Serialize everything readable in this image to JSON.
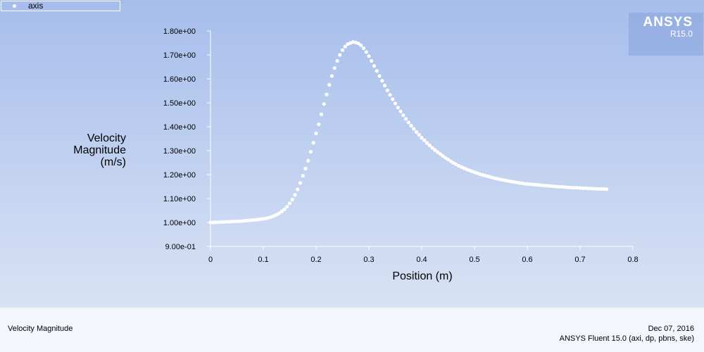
{
  "legend": {
    "series_name": "axis"
  },
  "logo": {
    "brand": "ANSYS",
    "version": "R15.0"
  },
  "footer": {
    "left": "Velocity Magnitude",
    "date": "Dec 07, 2016",
    "software": "ANSYS Fluent 15.0 (axi, dp, pbns, ske)"
  },
  "colors": {
    "background_top": "#a6bdec",
    "background_bottom": "#dfe7f7",
    "marker": "#ffffff",
    "axis": "#ffffff"
  },
  "chart_data": {
    "type": "scatter",
    "title": "",
    "ylabel_lines": [
      "Velocity",
      "Magnitude",
      "(m/s)"
    ],
    "xlabel": "Position (m)",
    "xlim": [
      0,
      0.8
    ],
    "ylim": [
      0.9,
      1.8
    ],
    "xticks": [
      0,
      0.1,
      0.2,
      0.3,
      0.4,
      0.5,
      0.6,
      0.7,
      0.8
    ],
    "xtick_labels": [
      "0",
      "0.1",
      "0.2",
      "0.3",
      "0.4",
      "0.5",
      "0.6",
      "0.7",
      "0.8"
    ],
    "yticks": [
      0.9,
      1.0,
      1.1,
      1.2,
      1.3,
      1.4,
      1.5,
      1.6,
      1.7,
      1.8
    ],
    "ytick_labels": [
      "9.00e-01",
      "1.00e+00",
      "1.10e+00",
      "1.20e+00",
      "1.30e+00",
      "1.40e+00",
      "1.50e+00",
      "1.60e+00",
      "1.70e+00",
      "1.80e+00"
    ],
    "grid": false,
    "legend_position": "top-left",
    "series": [
      {
        "name": "axis",
        "x": [
          0,
          0.005,
          0.01,
          0.015,
          0.02,
          0.025,
          0.03,
          0.035,
          0.04,
          0.045,
          0.05,
          0.055,
          0.06,
          0.065,
          0.07,
          0.075,
          0.08,
          0.085,
          0.09,
          0.095,
          0.1,
          0.105,
          0.11,
          0.115,
          0.12,
          0.125,
          0.13,
          0.135,
          0.14,
          0.145,
          0.15,
          0.155,
          0.16,
          0.165,
          0.17,
          0.175,
          0.18,
          0.185,
          0.19,
          0.195,
          0.2,
          0.205,
          0.21,
          0.215,
          0.22,
          0.225,
          0.23,
          0.235,
          0.24,
          0.245,
          0.25,
          0.255,
          0.26,
          0.265,
          0.27,
          0.275,
          0.28,
          0.285,
          0.29,
          0.295,
          0.3,
          0.305,
          0.31,
          0.315,
          0.32,
          0.325,
          0.33,
          0.335,
          0.34,
          0.345,
          0.35,
          0.355,
          0.36,
          0.365,
          0.37,
          0.375,
          0.38,
          0.385,
          0.39,
          0.395,
          0.4,
          0.405,
          0.41,
          0.415,
          0.42,
          0.425,
          0.43,
          0.435,
          0.44,
          0.445,
          0.45,
          0.455,
          0.46,
          0.465,
          0.47,
          0.475,
          0.48,
          0.485,
          0.49,
          0.495,
          0.5,
          0.505,
          0.51,
          0.515,
          0.52,
          0.525,
          0.53,
          0.535,
          0.54,
          0.545,
          0.55,
          0.555,
          0.56,
          0.565,
          0.57,
          0.575,
          0.58,
          0.585,
          0.59,
          0.595,
          0.6,
          0.605,
          0.61,
          0.615,
          0.62,
          0.625,
          0.63,
          0.635,
          0.64,
          0.645,
          0.65,
          0.655,
          0.66,
          0.665,
          0.67,
          0.675,
          0.68,
          0.685,
          0.69,
          0.695,
          0.7,
          0.705,
          0.71,
          0.715,
          0.72,
          0.725,
          0.73,
          0.735,
          0.74,
          0.745,
          0.75
        ],
        "y": [
          1.0,
          1.0,
          1.001,
          1.001,
          1.002,
          1.002,
          1.003,
          1.003,
          1.004,
          1.004,
          1.005,
          1.005,
          1.006,
          1.007,
          1.008,
          1.009,
          1.01,
          1.011,
          1.012,
          1.014,
          1.015,
          1.017,
          1.02,
          1.023,
          1.027,
          1.032,
          1.038,
          1.046,
          1.055,
          1.066,
          1.08,
          1.096,
          1.115,
          1.138,
          1.165,
          1.195,
          1.225,
          1.258,
          1.295,
          1.333,
          1.372,
          1.41,
          1.452,
          1.495,
          1.535,
          1.575,
          1.612,
          1.645,
          1.675,
          1.7,
          1.72,
          1.735,
          1.745,
          1.75,
          1.754,
          1.752,
          1.748,
          1.74,
          1.728,
          1.712,
          1.695,
          1.675,
          1.654,
          1.633,
          1.612,
          1.592,
          1.572,
          1.552,
          1.533,
          1.515,
          1.497,
          1.48,
          1.464,
          1.448,
          1.433,
          1.418,
          1.404,
          1.391,
          1.378,
          1.366,
          1.354,
          1.343,
          1.332,
          1.322,
          1.312,
          1.303,
          1.294,
          1.286,
          1.278,
          1.27,
          1.263,
          1.256,
          1.249,
          1.243,
          1.237,
          1.232,
          1.227,
          1.222,
          1.218,
          1.214,
          1.21,
          1.206,
          1.202,
          1.199,
          1.196,
          1.193,
          1.19,
          1.187,
          1.184,
          1.182,
          1.179,
          1.177,
          1.175,
          1.173,
          1.171,
          1.169,
          1.167,
          1.165,
          1.164,
          1.162,
          1.161,
          1.16,
          1.159,
          1.158,
          1.157,
          1.156,
          1.155,
          1.154,
          1.153,
          1.152,
          1.151,
          1.15,
          1.149,
          1.149,
          1.148,
          1.147,
          1.146,
          1.146,
          1.145,
          1.145,
          1.144,
          1.143,
          1.143,
          1.142,
          1.142,
          1.141,
          1.141,
          1.14,
          1.14,
          1.14,
          1.139
        ]
      }
    ]
  }
}
